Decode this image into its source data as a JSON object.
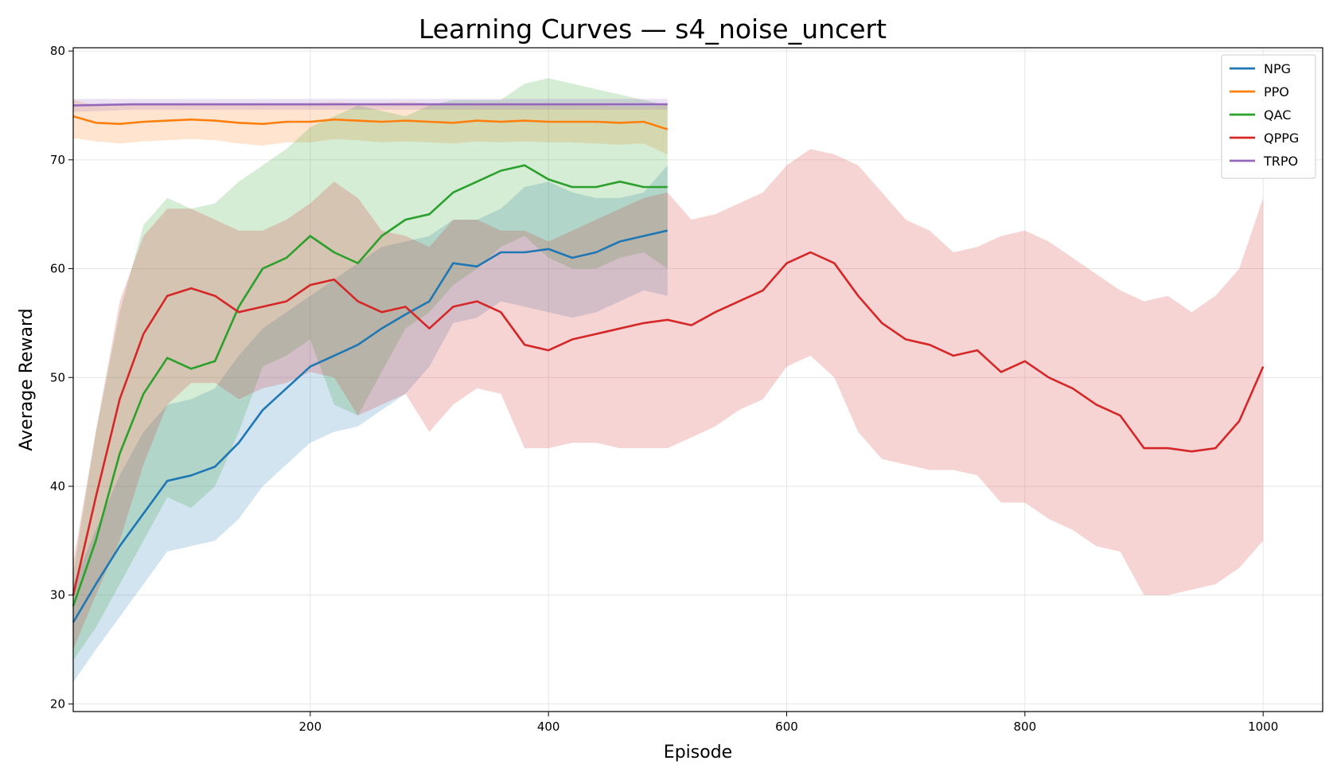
{
  "chart_data": {
    "type": "line",
    "title": "Learning Curves — s4_noise_uncert",
    "xlabel": "Episode",
    "ylabel": "Average Reward",
    "xlim": [
      1,
      1050
    ],
    "ylim": [
      19.3,
      80.3
    ],
    "xticks": [
      200,
      400,
      600,
      800,
      1000
    ],
    "yticks": [
      20,
      30,
      40,
      50,
      60,
      70,
      80
    ],
    "grid": true,
    "legend_position": "top-right",
    "shaded_band": "±1 std",
    "series": [
      {
        "name": "NPG",
        "color": "#1f77b4",
        "x": [
          1,
          20,
          40,
          60,
          80,
          100,
          120,
          140,
          160,
          180,
          200,
          220,
          240,
          260,
          280,
          300,
          320,
          340,
          360,
          380,
          400,
          420,
          440,
          460,
          480,
          500
        ],
        "mean": [
          27.5,
          31.0,
          34.5,
          37.5,
          40.5,
          41.0,
          41.8,
          44.0,
          47.0,
          49.0,
          51.0,
          52.0,
          53.0,
          54.5,
          55.8,
          57.0,
          60.5,
          60.2,
          61.5,
          61.5,
          61.8,
          61.0,
          61.5,
          62.5,
          63.0,
          63.5
        ],
        "upper": [
          31.0,
          36.0,
          41.0,
          45.0,
          47.5,
          48.0,
          49.0,
          52.0,
          54.5,
          56.0,
          57.5,
          59.0,
          60.5,
          62.0,
          62.5,
          63.0,
          64.5,
          64.5,
          65.5,
          67.5,
          68.0,
          67.0,
          66.5,
          66.5,
          67.0,
          69.5
        ],
        "lower": [
          22.0,
          25.0,
          28.0,
          31.0,
          34.0,
          34.5,
          35.0,
          37.0,
          40.0,
          42.0,
          44.0,
          45.0,
          45.5,
          47.0,
          48.5,
          51.0,
          55.0,
          55.5,
          57.0,
          56.5,
          56.0,
          55.5,
          56.0,
          57.0,
          58.0,
          57.5
        ]
      },
      {
        "name": "PPO",
        "color": "#ff7f0e",
        "x": [
          1,
          20,
          40,
          60,
          80,
          100,
          120,
          140,
          160,
          180,
          200,
          220,
          240,
          260,
          280,
          300,
          320,
          340,
          360,
          380,
          400,
          420,
          440,
          460,
          480,
          500
        ],
        "mean": [
          74.0,
          73.4,
          73.3,
          73.5,
          73.6,
          73.7,
          73.6,
          73.4,
          73.3,
          73.5,
          73.5,
          73.7,
          73.6,
          73.5,
          73.6,
          73.5,
          73.4,
          73.6,
          73.5,
          73.6,
          73.5,
          73.5,
          73.5,
          73.4,
          73.5,
          72.8
        ],
        "upper": [
          75.5,
          75.0,
          75.0,
          75.1,
          75.1,
          75.2,
          75.2,
          75.1,
          75.0,
          75.1,
          75.2,
          75.3,
          75.2,
          75.2,
          75.3,
          75.2,
          75.1,
          75.2,
          75.1,
          75.2,
          75.1,
          75.0,
          75.0,
          74.9,
          74.9,
          75.0
        ],
        "lower": [
          72.0,
          71.7,
          71.5,
          71.7,
          71.8,
          71.9,
          71.8,
          71.5,
          71.3,
          71.6,
          71.6,
          71.9,
          71.8,
          71.6,
          71.7,
          71.6,
          71.5,
          71.7,
          71.6,
          71.7,
          71.6,
          71.6,
          71.5,
          71.4,
          71.5,
          70.5
        ]
      },
      {
        "name": "QAC",
        "color": "#2ca02c",
        "x": [
          1,
          20,
          40,
          60,
          80,
          100,
          120,
          140,
          160,
          180,
          200,
          220,
          240,
          260,
          280,
          300,
          320,
          340,
          360,
          380,
          400,
          420,
          440,
          460,
          480,
          500
        ],
        "mean": [
          29.0,
          35.0,
          43.0,
          48.5,
          51.8,
          50.8,
          51.5,
          56.5,
          60.0,
          61.0,
          63.0,
          61.5,
          60.5,
          63.0,
          64.5,
          65.0,
          67.0,
          68.0,
          69.0,
          69.5,
          68.2,
          67.5,
          67.5,
          68.0,
          67.5,
          67.5
        ],
        "upper": [
          32.0,
          45.0,
          56.0,
          64.0,
          66.5,
          65.5,
          66.0,
          68.0,
          69.5,
          71.0,
          73.0,
          74.0,
          75.0,
          74.5,
          74.0,
          75.0,
          75.5,
          75.5,
          75.5,
          77.0,
          77.5,
          77.0,
          76.5,
          76.0,
          75.5,
          75.0
        ],
        "lower": [
          24.0,
          27.0,
          31.0,
          35.0,
          39.0,
          38.0,
          40.0,
          45.0,
          51.0,
          52.0,
          53.5,
          47.5,
          46.5,
          50.5,
          54.5,
          56.0,
          58.5,
          60.0,
          62.0,
          63.0,
          61.0,
          60.0,
          60.0,
          61.0,
          61.5,
          60.0
        ]
      },
      {
        "name": "QPPG",
        "color": "#d62728",
        "x": [
          1,
          20,
          40,
          60,
          80,
          100,
          120,
          140,
          160,
          180,
          200,
          220,
          240,
          260,
          280,
          300,
          320,
          340,
          360,
          380,
          400,
          420,
          440,
          460,
          480,
          500,
          520,
          540,
          560,
          580,
          600,
          620,
          640,
          660,
          680,
          700,
          720,
          740,
          760,
          780,
          800,
          820,
          840,
          860,
          880,
          900,
          920,
          940,
          960,
          980,
          1000
        ],
        "mean": [
          30.0,
          39.0,
          48.0,
          54.0,
          57.5,
          58.2,
          57.5,
          56.0,
          56.5,
          57.0,
          58.5,
          59.0,
          57.0,
          56.0,
          56.5,
          54.5,
          56.5,
          57.0,
          56.0,
          53.0,
          52.5,
          53.5,
          54.0,
          54.5,
          55.0,
          55.3,
          54.8,
          56.0,
          57.0,
          58.0,
          60.5,
          61.5,
          60.5,
          57.5,
          55.0,
          53.5,
          53.0,
          52.0,
          52.5,
          50.5,
          51.5,
          50.0,
          49.0,
          47.5,
          46.5,
          43.5,
          43.5,
          43.2,
          43.5,
          46.0,
          51.0
        ],
        "upper": [
          33.0,
          45.0,
          57.0,
          63.0,
          65.5,
          65.5,
          64.5,
          63.5,
          63.5,
          64.5,
          66.0,
          68.0,
          66.5,
          63.5,
          63.0,
          62.0,
          64.5,
          64.5,
          63.5,
          63.5,
          62.5,
          63.5,
          64.5,
          65.5,
          66.5,
          67.0,
          64.5,
          65.0,
          66.0,
          67.0,
          69.5,
          71.0,
          70.5,
          69.5,
          67.0,
          64.5,
          63.5,
          61.5,
          62.0,
          63.0,
          63.5,
          62.5,
          61.0,
          59.5,
          58.0,
          57.0,
          57.5,
          56.0,
          57.5,
          60.0,
          66.5
        ],
        "lower": [
          25.0,
          30.0,
          35.0,
          42.0,
          47.5,
          49.5,
          49.5,
          48.0,
          49.0,
          49.5,
          50.5,
          50.0,
          46.5,
          47.5,
          48.5,
          45.0,
          47.5,
          49.0,
          48.5,
          43.5,
          43.5,
          44.0,
          44.0,
          43.5,
          43.5,
          43.5,
          44.5,
          45.5,
          47.0,
          48.0,
          51.0,
          52.0,
          50.0,
          45.0,
          42.5,
          42.0,
          41.5,
          41.5,
          41.0,
          38.5,
          38.5,
          37.0,
          36.0,
          34.5,
          34.0,
          30.0,
          30.0,
          30.5,
          31.0,
          32.5,
          35.0
        ]
      },
      {
        "name": "TRPO",
        "color": "#9467bd",
        "x": [
          1,
          50,
          100,
          150,
          200,
          250,
          300,
          350,
          400,
          450,
          500
        ],
        "mean": [
          75.0,
          75.1,
          75.1,
          75.1,
          75.1,
          75.1,
          75.1,
          75.1,
          75.1,
          75.1,
          75.1
        ],
        "upper": [
          75.6,
          75.6,
          75.6,
          75.6,
          75.6,
          75.6,
          75.6,
          75.6,
          75.6,
          75.6,
          75.6
        ],
        "lower": [
          74.4,
          74.6,
          74.6,
          74.6,
          74.6,
          74.6,
          74.6,
          74.6,
          74.6,
          74.6,
          74.6
        ]
      }
    ]
  }
}
